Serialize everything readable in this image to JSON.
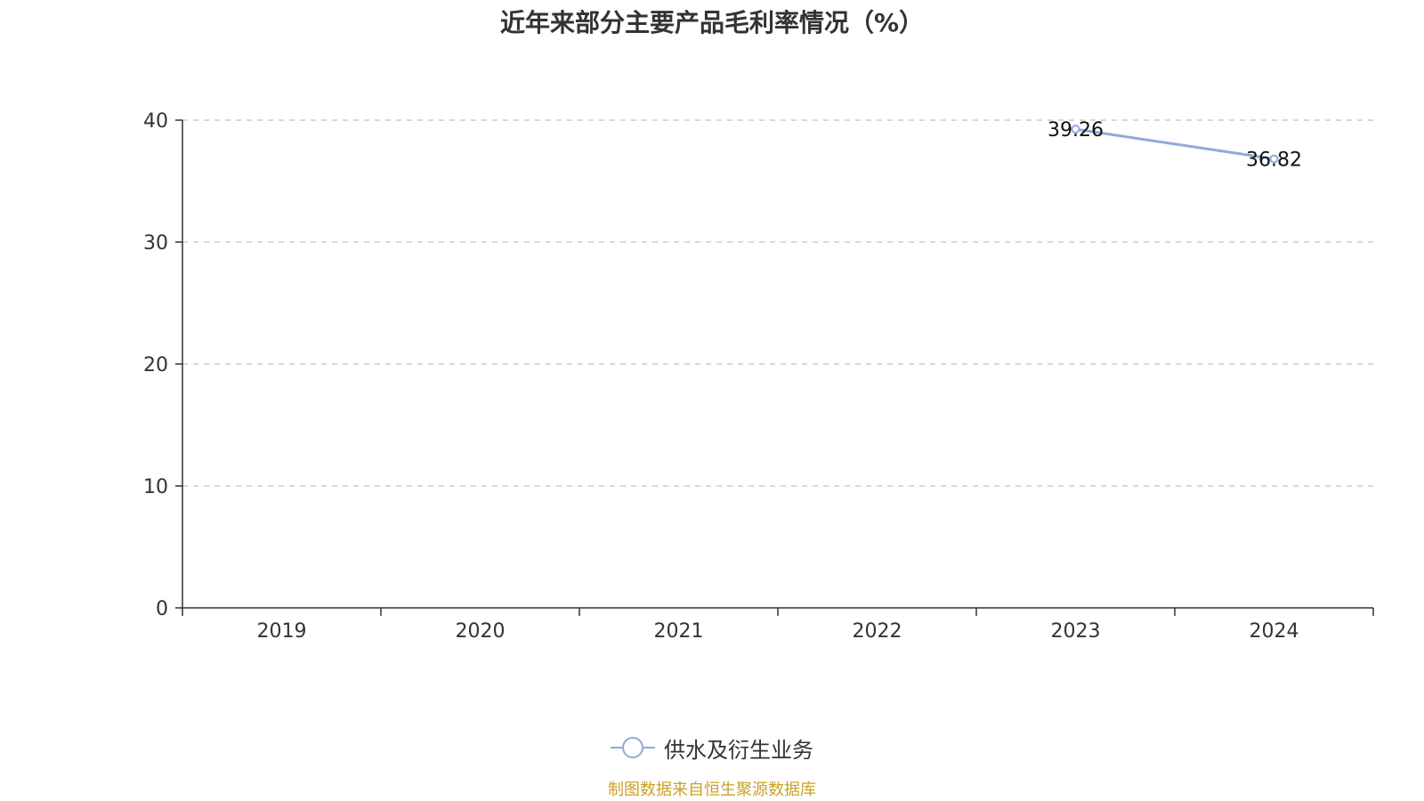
{
  "chart_data": {
    "type": "line",
    "title": "近年来部分主要产品毛利率情况（%）",
    "categories": [
      "2019",
      "2020",
      "2021",
      "2022",
      "2023",
      "2024"
    ],
    "series": [
      {
        "name": "供水及衍生业务",
        "values": [
          null,
          null,
          null,
          null,
          39.26,
          36.82
        ],
        "labels": [
          "",
          "",
          "",
          "",
          "39.26",
          "36.82"
        ]
      }
    ],
    "ylim": [
      0,
      40
    ],
    "yticks": [
      "0",
      "10",
      "20",
      "30",
      "40"
    ],
    "grid": true,
    "legend_position": "bottom"
  },
  "colors": {
    "series": "#8eaadb",
    "axis": "#333333",
    "grid": "#cccccc",
    "source": "#c9a227"
  },
  "source_note": "制图数据来自恒生聚源数据库"
}
